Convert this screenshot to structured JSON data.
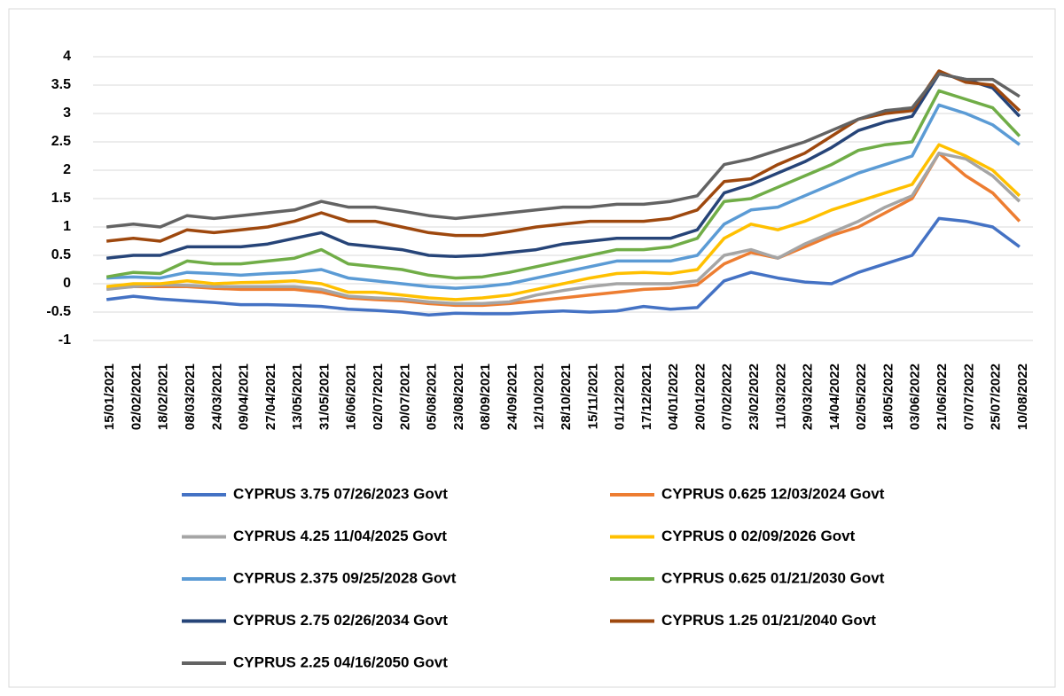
{
  "chart_data": {
    "type": "line",
    "categories": [
      "15/01/2021",
      "02/02/2021",
      "18/02/2021",
      "08/03/2021",
      "24/03/2021",
      "09/04/2021",
      "27/04/2021",
      "13/05/2021",
      "31/05/2021",
      "16/06/2021",
      "02/07/2021",
      "20/07/2021",
      "05/08/2021",
      "23/08/2021",
      "08/09/2021",
      "24/09/2021",
      "12/10/2021",
      "28/10/2021",
      "15/11/2021",
      "01/12/2021",
      "17/12/2021",
      "04/01/2022",
      "20/01/2022",
      "07/02/2022",
      "23/02/2022",
      "11/03/2022",
      "29/03/2022",
      "14/04/2022",
      "02/05/2022",
      "18/05/2022",
      "03/06/2022",
      "21/06/2022",
      "07/07/2022",
      "25/07/2022",
      "10/08/2022"
    ],
    "series": [
      {
        "name": "CYPRUS 3.75 07/26/2023 Govt",
        "color": "#4472c4",
        "values": [
          -0.28,
          -0.22,
          -0.27,
          -0.3,
          -0.33,
          -0.37,
          -0.37,
          -0.38,
          -0.4,
          -0.45,
          -0.47,
          -0.5,
          -0.55,
          -0.52,
          -0.53,
          -0.53,
          -0.5,
          -0.48,
          -0.5,
          -0.48,
          -0.4,
          -0.45,
          -0.42,
          0.05,
          0.2,
          0.1,
          0.03,
          0.0,
          0.2,
          0.35,
          0.5,
          1.15,
          1.1,
          1.0,
          0.65
        ]
      },
      {
        "name": "CYPRUS 0.625 12/03/2024 Govt",
        "color": "#ed7d31",
        "values": [
          -0.08,
          -0.05,
          -0.05,
          -0.05,
          -0.08,
          -0.1,
          -0.1,
          -0.1,
          -0.15,
          -0.25,
          -0.28,
          -0.3,
          -0.35,
          -0.38,
          -0.38,
          -0.35,
          -0.3,
          -0.25,
          -0.2,
          -0.15,
          -0.1,
          -0.08,
          -0.02,
          0.35,
          0.55,
          0.45,
          0.65,
          0.85,
          1.0,
          1.25,
          1.5,
          2.3,
          1.9,
          1.6,
          1.1
        ]
      },
      {
        "name": "CYPRUS 4.25 11/04/2025 Govt",
        "color": "#a5a5a5",
        "values": [
          -0.1,
          -0.05,
          -0.02,
          -0.03,
          -0.05,
          -0.05,
          -0.05,
          -0.05,
          -0.1,
          -0.22,
          -0.25,
          -0.27,
          -0.32,
          -0.35,
          -0.35,
          -0.32,
          -0.2,
          -0.12,
          -0.05,
          0.0,
          0.0,
          0.0,
          0.05,
          0.5,
          0.6,
          0.45,
          0.7,
          0.9,
          1.1,
          1.35,
          1.55,
          2.3,
          2.2,
          1.9,
          1.45
        ]
      },
      {
        "name": "CYPRUS 0 02/09/2026 Govt",
        "color": "#ffc000",
        "values": [
          -0.05,
          0.0,
          0.0,
          0.05,
          0.0,
          0.02,
          0.03,
          0.05,
          0.0,
          -0.15,
          -0.15,
          -0.2,
          -0.25,
          -0.28,
          -0.25,
          -0.2,
          -0.1,
          0.0,
          0.1,
          0.18,
          0.2,
          0.18,
          0.25,
          0.8,
          1.05,
          0.95,
          1.1,
          1.3,
          1.45,
          1.6,
          1.75,
          2.45,
          2.25,
          2.0,
          1.55
        ]
      },
      {
        "name": "CYPRUS 2.375 09/25/2028 Govt",
        "color": "#5b9bd5",
        "values": [
          0.1,
          0.12,
          0.1,
          0.2,
          0.18,
          0.15,
          0.18,
          0.2,
          0.25,
          0.1,
          0.05,
          0.0,
          -0.05,
          -0.08,
          -0.05,
          0.0,
          0.1,
          0.2,
          0.3,
          0.4,
          0.4,
          0.4,
          0.5,
          1.05,
          1.3,
          1.35,
          1.55,
          1.75,
          1.95,
          2.1,
          2.25,
          3.15,
          3.0,
          2.8,
          2.45
        ]
      },
      {
        "name": "CYPRUS 0.625 01/21/2030 Govt",
        "color": "#70ad47",
        "values": [
          0.12,
          0.2,
          0.18,
          0.4,
          0.35,
          0.35,
          0.4,
          0.45,
          0.6,
          0.35,
          0.3,
          0.25,
          0.15,
          0.1,
          0.12,
          0.2,
          0.3,
          0.4,
          0.5,
          0.6,
          0.6,
          0.65,
          0.8,
          1.45,
          1.5,
          1.7,
          1.9,
          2.1,
          2.35,
          2.45,
          2.5,
          3.4,
          3.25,
          3.1,
          2.6
        ]
      },
      {
        "name": "CYPRUS 2.75 02/26/2034 Govt",
        "color": "#264478",
        "values": [
          0.45,
          0.5,
          0.5,
          0.65,
          0.65,
          0.65,
          0.7,
          0.8,
          0.9,
          0.7,
          0.65,
          0.6,
          0.5,
          0.48,
          0.5,
          0.55,
          0.6,
          0.7,
          0.75,
          0.8,
          0.8,
          0.8,
          0.95,
          1.6,
          1.75,
          1.95,
          2.15,
          2.4,
          2.7,
          2.85,
          2.95,
          3.7,
          3.6,
          3.45,
          2.95
        ]
      },
      {
        "name": "CYPRUS 1.25 01/21/2040 Govt",
        "color": "#9e480e",
        "values": [
          0.75,
          0.8,
          0.75,
          0.95,
          0.9,
          0.95,
          1.0,
          1.1,
          1.25,
          1.1,
          1.1,
          1.0,
          0.9,
          0.85,
          0.85,
          0.92,
          1.0,
          1.05,
          1.1,
          1.1,
          1.1,
          1.15,
          1.3,
          1.8,
          1.85,
          2.1,
          2.3,
          2.6,
          2.9,
          3.0,
          3.05,
          3.75,
          3.55,
          3.5,
          3.05
        ]
      },
      {
        "name": "CYPRUS 2.25 04/16/2050 Govt",
        "color": "#636363",
        "values": [
          1.0,
          1.05,
          1.0,
          1.2,
          1.15,
          1.2,
          1.25,
          1.3,
          1.45,
          1.35,
          1.35,
          1.28,
          1.2,
          1.15,
          1.2,
          1.25,
          1.3,
          1.35,
          1.35,
          1.4,
          1.4,
          1.45,
          1.55,
          2.1,
          2.2,
          2.35,
          2.5,
          2.7,
          2.9,
          3.05,
          3.1,
          3.7,
          3.6,
          3.6,
          3.3
        ]
      }
    ],
    "ylim": [
      -1,
      4
    ],
    "yticks": [
      -1,
      -0.5,
      0,
      0.5,
      1,
      1.5,
      2,
      2.5,
      3,
      3.5,
      4
    ],
    "grid": true
  }
}
